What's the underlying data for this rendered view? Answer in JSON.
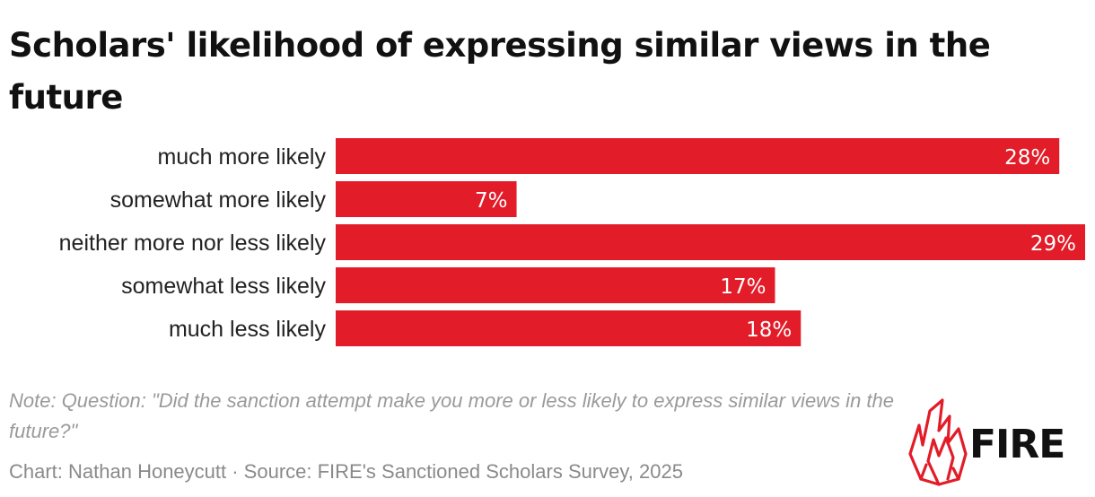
{
  "title": "Scholars' likelihood of expressing similar views in the future",
  "note": "Note: Question: \"Did the sanction attempt make you more or less likely to express similar views in the future?\"",
  "credit": "Chart: Nathan Honeycutt · Source: FIRE's Sanctioned Scholars Survey, 2025",
  "logo": {
    "text": "FIRE",
    "icon": "fire-flame-logo-icon"
  },
  "colors": {
    "bar": "#e21c28",
    "bar_label": "#ffffff",
    "category_label": "#222222"
  },
  "chart_data": {
    "type": "bar",
    "orientation": "horizontal",
    "categories": [
      "much more likely",
      "somewhat more likely",
      "neither more nor less likely",
      "somewhat less likely",
      "much less likely"
    ],
    "values": [
      28,
      7,
      29,
      17,
      18
    ],
    "value_labels": [
      "28%",
      "7%",
      "29%",
      "17%",
      "18%"
    ],
    "xlim": [
      0,
      29
    ],
    "grid": false,
    "legend": "none"
  }
}
